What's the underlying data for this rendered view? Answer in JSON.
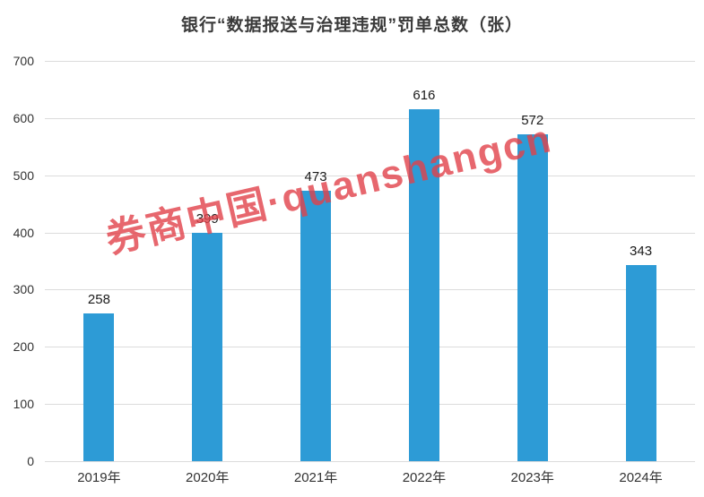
{
  "title": "银行“数据报送与治理违规”罚单总数（张）",
  "watermark": {
    "text": "券商中国·quanshangcn",
    "color": "#e2424b"
  },
  "chart_data": {
    "type": "bar",
    "title": "银行“数据报送与治理违规”罚单总数（张）",
    "categories": [
      "2019年",
      "2020年",
      "2021年",
      "2022年",
      "2023年",
      "2024年"
    ],
    "values": [
      258,
      399,
      473,
      616,
      572,
      343
    ],
    "xlabel": "",
    "ylabel": "",
    "ylim": [
      0,
      700
    ],
    "yticks": [
      0,
      100,
      200,
      300,
      400,
      500,
      600,
      700
    ],
    "bar_color": "#2d9bd6",
    "grid": true,
    "legend": false,
    "data_labels": true
  }
}
